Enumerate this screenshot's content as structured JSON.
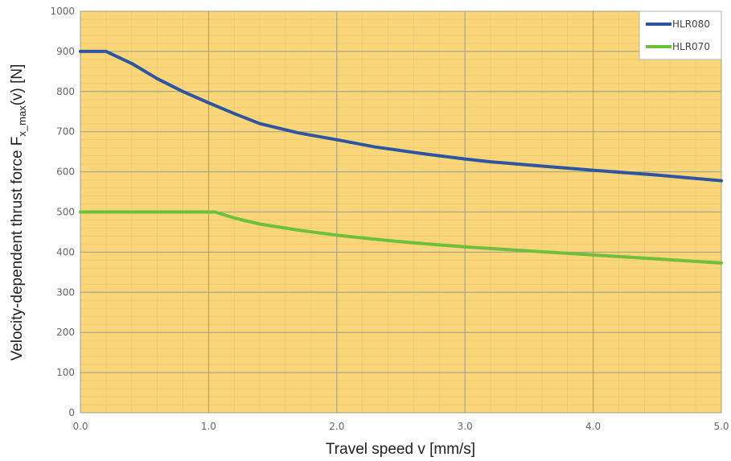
{
  "chart_data": {
    "type": "line",
    "title": "",
    "xlabel": "Travel speed v [mm/s]",
    "ylabel": {
      "prefix": "Velocity-dependent thrust force F",
      "subscript": "x_max",
      "suffix": "(v) [N]"
    },
    "xlim": [
      0,
      5
    ],
    "ylim": [
      0,
      1000
    ],
    "x_ticks": [
      "0.0",
      "1.0",
      "2.0",
      "3.0",
      "4.0",
      "5.0"
    ],
    "y_ticks": [
      "0",
      "100",
      "200",
      "300",
      "400",
      "500",
      "600",
      "700",
      "800",
      "900",
      "1000"
    ],
    "grid": true,
    "background_color": "#FBD679",
    "legend_position": "top-right",
    "series": [
      {
        "name": "HLR080",
        "color": "#2E55A0",
        "x": [
          0.0,
          0.2,
          0.4,
          0.6,
          0.8,
          1.0,
          1.2,
          1.4,
          1.7,
          2.0,
          2.3,
          2.7,
          3.0,
          3.2,
          3.5,
          4.0,
          4.5,
          5.0
        ],
        "y": [
          900,
          900,
          870,
          832,
          800,
          772,
          745,
          720,
          697,
          680,
          662,
          644,
          632,
          625,
          617,
          604,
          592,
          578
        ]
      },
      {
        "name": "HLR070",
        "color": "#6DBF3D",
        "x": [
          0.0,
          0.5,
          1.0,
          1.05,
          1.2,
          1.4,
          1.7,
          2.0,
          2.3,
          2.6,
          3.0,
          3.5,
          4.0,
          4.5,
          5.0
        ],
        "y": [
          500,
          500,
          500,
          500,
          485,
          470,
          455,
          442,
          432,
          423,
          413,
          403,
          393,
          383,
          373
        ]
      }
    ]
  }
}
